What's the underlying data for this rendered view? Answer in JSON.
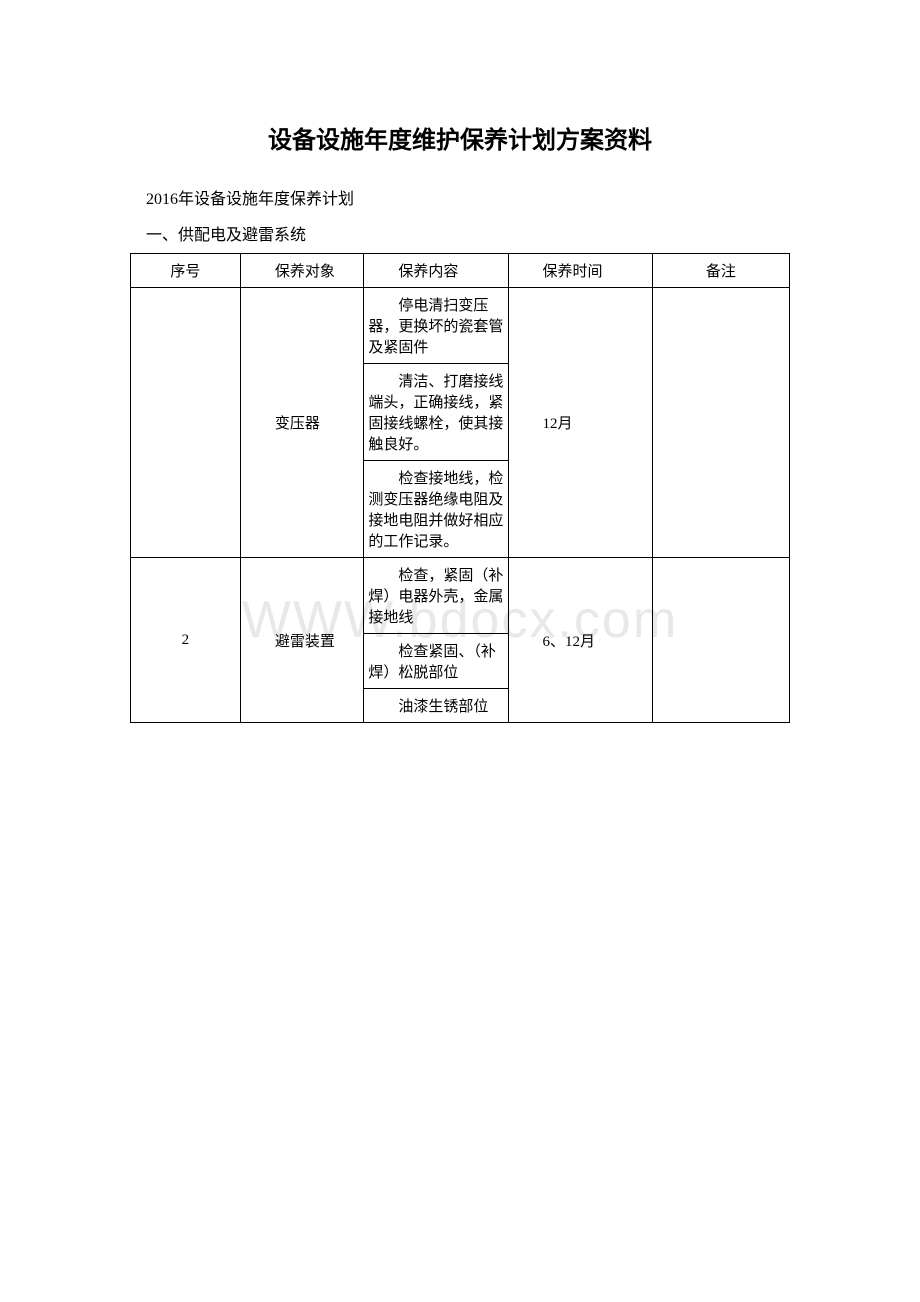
{
  "document": {
    "title": "设备设施年度维护保养计划方案资料",
    "subtitle": "2016年设备设施年度保养计划",
    "section": "一、供配电及避雷系统",
    "watermark": "WWW.bdocx.com"
  },
  "table": {
    "headers": {
      "seq": "序号",
      "obj": "保养对象",
      "content": "保养内容",
      "time": "保养时间",
      "note": "备注"
    },
    "rows": [
      {
        "seq": "",
        "obj": "变压器",
        "contents": [
          "停电清扫变压器，更换坏的瓷套管及紧固件",
          "清洁、打磨接线端头，正确接线，紧固接线螺栓，使其接触良好。",
          "检查接地线，检测变压器绝缘电阻及接地电阻并做好相应的工作记录。"
        ],
        "time": "12月",
        "note": ""
      },
      {
        "seq": "2",
        "obj": "避雷装置",
        "contents": [
          "检查，紧固（补焊）电器外壳，金属接地线",
          "检查紧固、（补焊）松脱部位",
          "油漆生锈部位"
        ],
        "time": "6、12月",
        "note": ""
      }
    ]
  },
  "style": {
    "text_color": "#000000",
    "bg_color": "#ffffff",
    "border_color": "#000000",
    "watermark_color": "#e8e8e8"
  }
}
